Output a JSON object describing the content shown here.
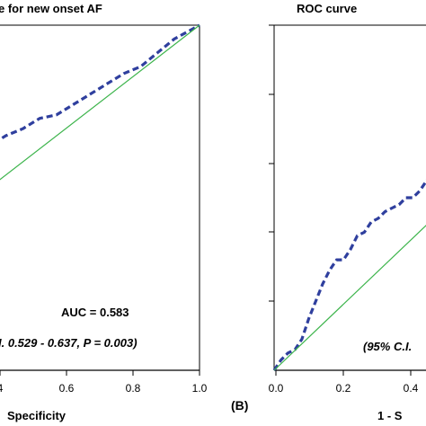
{
  "chart_data": [
    {
      "type": "line",
      "title": "ROC curve for new onset AF",
      "title_visible": "e for new onset AF",
      "xlabel_visible": "Specificity",
      "x_ticks": [
        "4",
        "0.6",
        "0.8",
        "1.0"
      ],
      "annotations": {
        "auc": "AUC = 0.583",
        "ci": "I. 0.529 - 0.637, P = 0.003)"
      },
      "series": [
        {
          "style": "dashed",
          "color": "#2f3f9e",
          "x": [
            0.3,
            0.34,
            0.38,
            0.42,
            0.46,
            0.5,
            0.54,
            0.58,
            0.62,
            0.66,
            0.7,
            0.74,
            0.78,
            0.82,
            0.86,
            0.9,
            0.94,
            1.0
          ],
          "y": [
            0.54,
            0.57,
            0.58,
            0.61,
            0.62,
            0.65,
            0.68,
            0.7,
            0.73,
            0.74,
            0.77,
            0.8,
            0.83,
            0.86,
            0.88,
            0.92,
            0.96,
            1.0
          ]
        },
        {
          "style": "solid",
          "color": "#3cb44b",
          "x": [
            0.3,
            1.0
          ],
          "y": [
            0.34,
            1.0
          ]
        }
      ]
    },
    {
      "type": "line",
      "title_visible": "ROC curve",
      "xlabel_visible": "1 - S",
      "x_ticks": [
        "0.0",
        "0.2",
        "0.4"
      ],
      "annotations": {
        "ci": "(95% C.I."
      },
      "series": [
        {
          "style": "dashed",
          "color": "#2f3f9e",
          "x": [
            0.0,
            0.02,
            0.04,
            0.06,
            0.08,
            0.1,
            0.12,
            0.14,
            0.16,
            0.18,
            0.2,
            0.22,
            0.24,
            0.26,
            0.28,
            0.3,
            0.32,
            0.34,
            0.36,
            0.38,
            0.4,
            0.42,
            0.44,
            0.46,
            0.48
          ],
          "y": [
            0.0,
            0.03,
            0.05,
            0.06,
            0.09,
            0.15,
            0.2,
            0.25,
            0.29,
            0.32,
            0.32,
            0.35,
            0.39,
            0.4,
            0.43,
            0.44,
            0.46,
            0.47,
            0.48,
            0.5,
            0.5,
            0.52,
            0.55,
            0.58,
            0.56
          ]
        },
        {
          "style": "solid",
          "color": "#3cb44b",
          "x": [
            0.0,
            0.48
          ],
          "y": [
            0.0,
            0.46
          ]
        }
      ]
    }
  ],
  "panel_label": "(B)"
}
